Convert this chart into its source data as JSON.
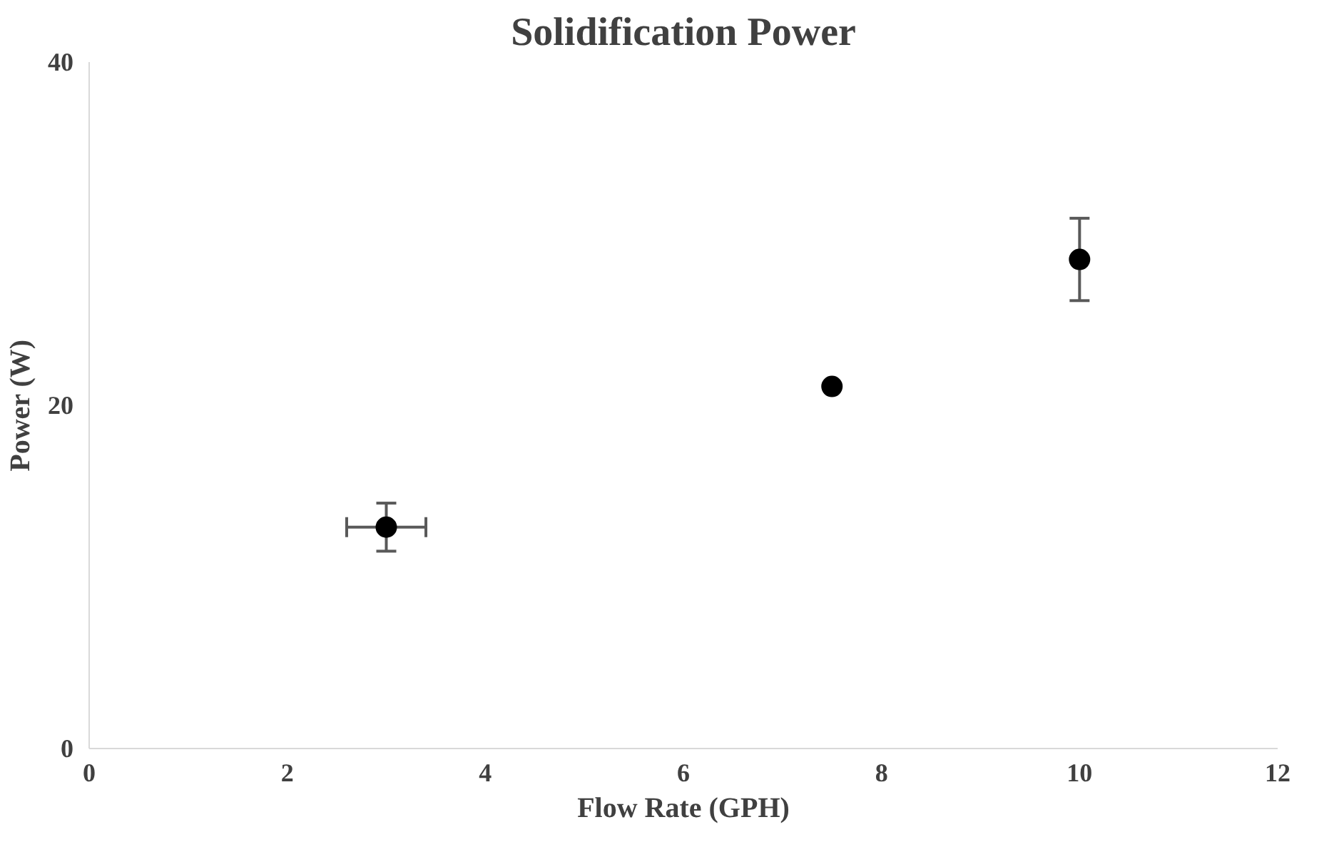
{
  "chart_data": {
    "type": "scatter",
    "title": "Solidification Power",
    "xlabel": "Flow Rate (GPH)",
    "ylabel": "Power (W)",
    "x": [
      3,
      7.5,
      10
    ],
    "values": [
      12.9,
      21.1,
      28.5
    ],
    "errors": [
      [
        11.5,
        14.3
      ],
      null,
      [
        26.1,
        30.9
      ]
    ],
    "xerrors": [
      [
        2.6,
        3.4
      ],
      null,
      null
    ],
    "color": "#000000",
    "marker": "circle",
    "xlim": [
      0,
      12
    ],
    "xticks": [
      0,
      2,
      4,
      6,
      8,
      10,
      12
    ],
    "ylim": [
      0,
      40
    ],
    "yticks": [
      0,
      20,
      40
    ],
    "grid": false
  }
}
